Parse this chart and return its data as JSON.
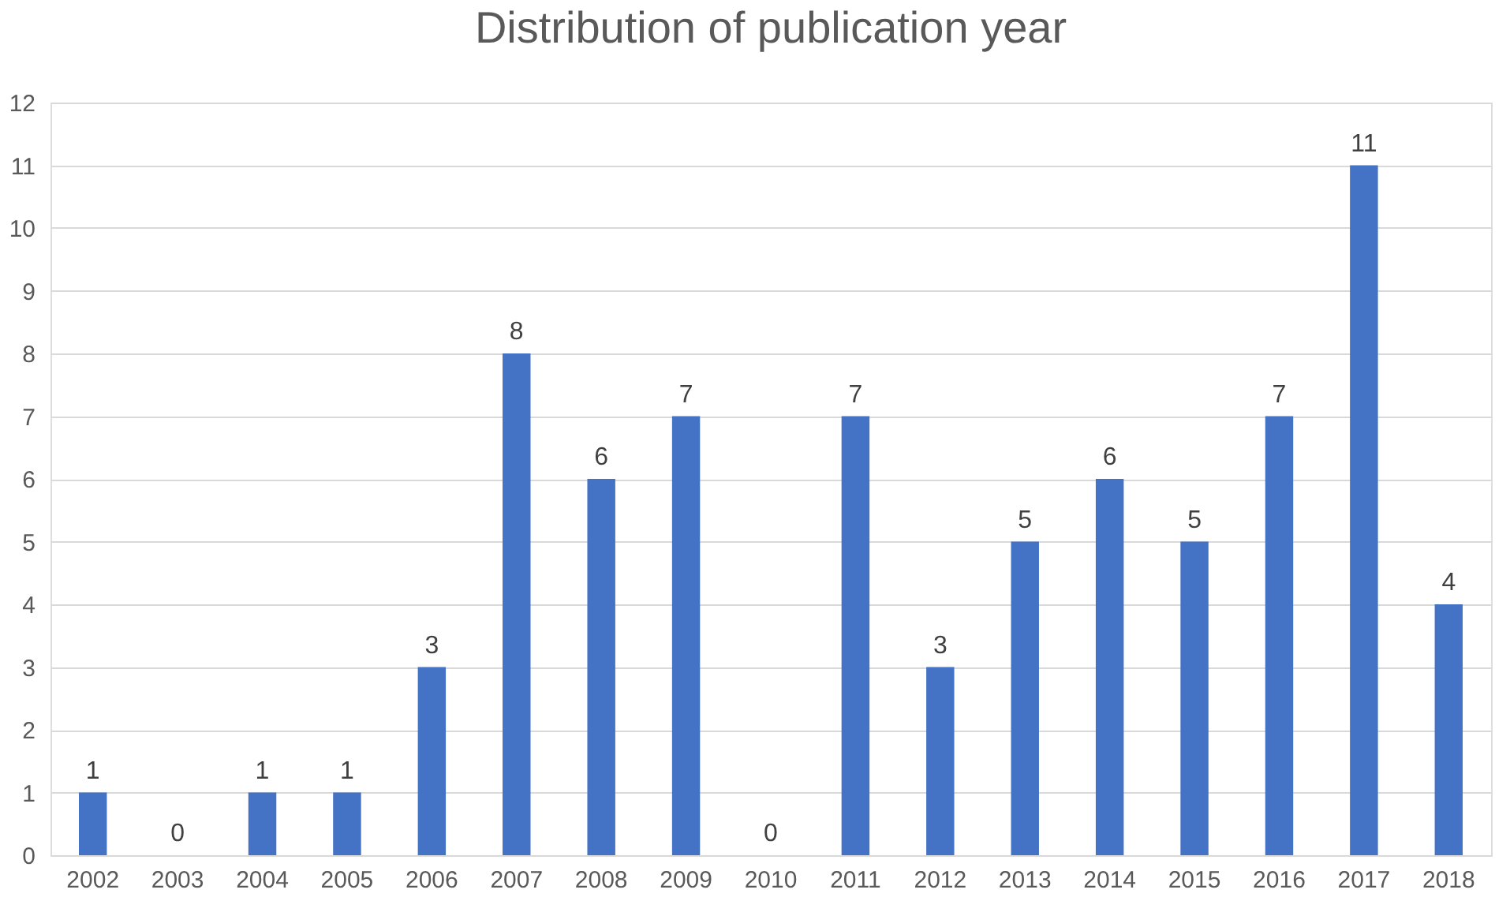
{
  "chart_data": {
    "type": "bar",
    "title": "Distribution of publication year",
    "categories": [
      "2002",
      "2003",
      "2004",
      "2005",
      "2006",
      "2007",
      "2008",
      "2009",
      "2010",
      "2011",
      "2012",
      "2013",
      "2014",
      "2015",
      "2016",
      "2017",
      "2018"
    ],
    "values": [
      1,
      0,
      1,
      1,
      3,
      8,
      6,
      7,
      0,
      7,
      3,
      5,
      6,
      5,
      7,
      11,
      4
    ],
    "color": "#4472c4",
    "ylim": [
      0,
      12
    ],
    "yticks": [
      0,
      1,
      2,
      3,
      4,
      5,
      6,
      7,
      8,
      9,
      10,
      11,
      12
    ],
    "grid": "y",
    "data_labels": true
  }
}
